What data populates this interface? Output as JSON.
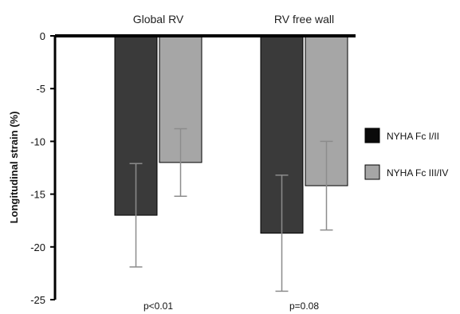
{
  "chart_data": {
    "type": "bar",
    "categories": [
      "Global RV",
      "RV free wall"
    ],
    "series": [
      {
        "name": "NYHA Fc I/II",
        "values": [
          -17.0,
          -18.7
        ],
        "errors": [
          4.9,
          5.5
        ],
        "color": "#3a3a3a"
      },
      {
        "name": "NYHA Fc III/IV",
        "values": [
          -12.0,
          -14.2
        ],
        "errors": [
          3.2,
          4.2
        ],
        "color": "#a6a6a6"
      }
    ],
    "ylabel": "Longitudinal strain (%)",
    "ylim": [
      -25,
      0
    ],
    "yticks": [
      "0",
      "-5",
      "-10",
      "-15",
      "-20",
      "-25"
    ],
    "annotations": [
      "p<0.01",
      "p=0.08"
    ],
    "legend_position": "right",
    "grid": false
  }
}
